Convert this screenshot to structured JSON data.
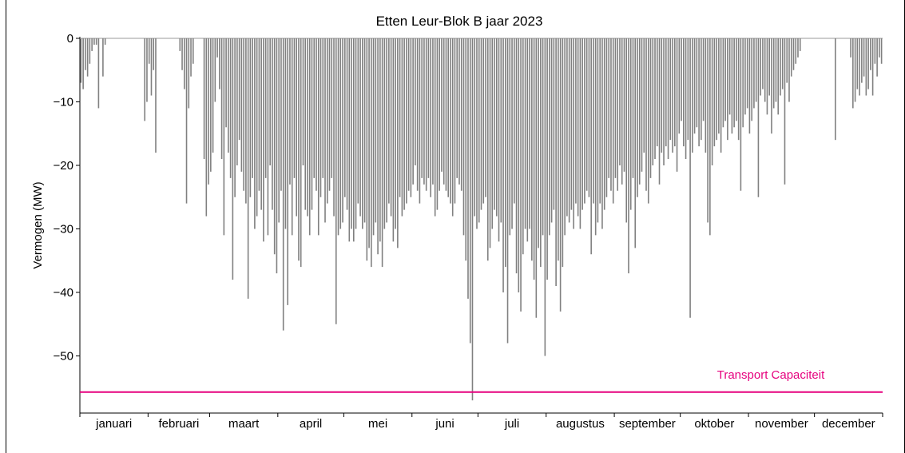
{
  "chart_data": {
    "type": "bar",
    "title": "Etten Leur-Blok B jaar 2023",
    "ylabel": "Vermogen (MW)",
    "xlabel": "",
    "ylim": [
      -59,
      0
    ],
    "yticks": [
      0,
      -10,
      -20,
      -30,
      -40,
      -50
    ],
    "ytick_labels": [
      "0",
      "−10",
      "−20",
      "−30",
      "−40",
      "−50"
    ],
    "months": [
      "januari",
      "februari",
      "maart",
      "april",
      "mei",
      "juni",
      "juli",
      "augustus",
      "september",
      "oktober",
      "november",
      "december"
    ],
    "bar_color": "#808080",
    "line_color": "#e6007e",
    "transport_capacity": {
      "label": "Transport Capaciteit",
      "value": -55.7
    },
    "series": [
      {
        "name": "",
        "resolution": "daily",
        "year": 2023,
        "min_values": [
          -7,
          -8,
          -5,
          -6,
          -4,
          -2,
          -1,
          -1,
          -11,
          0,
          -6,
          -1,
          0,
          0,
          0,
          0,
          0,
          0,
          0,
          0,
          0,
          0,
          0,
          0,
          0,
          0,
          0,
          0,
          0,
          -13,
          -10,
          -4,
          -9,
          -5,
          -18,
          0,
          0,
          0,
          0,
          0,
          0,
          0,
          0,
          0,
          0,
          -2,
          -5,
          -8,
          -26,
          -11,
          -6,
          -4,
          0,
          0,
          0,
          0,
          -19,
          -28,
          -23,
          -21,
          -18,
          -10,
          -3,
          -8,
          -19,
          -31,
          -14,
          -18,
          -22,
          -38,
          -25,
          -20,
          -16,
          -21,
          -24,
          -26,
          -41,
          -25,
          -22,
          -30,
          -28,
          -24,
          -27,
          -32,
          -22,
          -31,
          -20,
          -27,
          -34,
          -37,
          -29,
          -24,
          -46,
          -30,
          -42,
          -23,
          -31,
          -22,
          -28,
          -35,
          -36,
          -20,
          -27,
          -28,
          -31,
          -27,
          -22,
          -24,
          -31,
          -25,
          -22,
          -29,
          -26,
          -24,
          -22,
          -28,
          -45,
          -31,
          -30,
          -29,
          -25,
          -27,
          -32,
          -30,
          -32,
          -30,
          -26,
          -28,
          -30,
          -29,
          -35,
          -33,
          -36,
          -31,
          -29,
          -34,
          -32,
          -36,
          -30,
          -29,
          -26,
          -28,
          -32,
          -30,
          -33,
          -25,
          -28,
          -27,
          -26,
          -24,
          -25,
          -23,
          -20,
          -24,
          -26,
          -22,
          -23,
          -24,
          -22,
          -25,
          -23,
          -28,
          -27,
          -24,
          -21,
          -23,
          -24,
          -25,
          -26,
          -28,
          -26,
          -22,
          -23,
          -24,
          -31,
          -35,
          -41,
          -48,
          -57,
          -28,
          -30,
          -29,
          -27,
          -26,
          -25,
          -35,
          -33,
          -30,
          -27,
          -28,
          -32,
          -29,
          -40,
          -36,
          -48,
          -31,
          -30,
          -26,
          -37,
          -40,
          -43,
          -34,
          -30,
          -32,
          -30,
          -35,
          -38,
          -44,
          -33,
          -36,
          -31,
          -50,
          -38,
          -31,
          -29,
          -27,
          -39,
          -35,
          -43,
          -36,
          -31,
          -28,
          -29,
          -27,
          -30,
          -26,
          -28,
          -30,
          -27,
          -26,
          -24,
          -25,
          -34,
          -26,
          -31,
          -29,
          -26,
          -30,
          -27,
          -25,
          -22,
          -24,
          -26,
          -22,
          -24,
          -20,
          -23,
          -21,
          -29,
          -37,
          -27,
          -22,
          -33,
          -25,
          -23,
          -21,
          -18,
          -24,
          -26,
          -22,
          -20,
          -19,
          -17,
          -23,
          -18,
          -20,
          -17,
          -19,
          -16,
          -18,
          -17,
          -21,
          -15,
          -13,
          -17,
          -19,
          -16,
          -44,
          -18,
          -15,
          -14,
          -17,
          -16,
          -13,
          -18,
          -29,
          -31,
          -20,
          -17,
          -16,
          -15,
          -18,
          -14,
          -13,
          -16,
          -12,
          -15,
          -14,
          -13,
          -16,
          -24,
          -14,
          -12,
          -11,
          -15,
          -13,
          -11,
          -10,
          -25,
          -9,
          -8,
          -10,
          -12,
          -9,
          -15,
          -11,
          -10,
          -12,
          -9,
          -8,
          -23,
          -7,
          -10,
          -6,
          -5,
          -4,
          -3,
          -2,
          0,
          0,
          0,
          0,
          0,
          0,
          0,
          0,
          0,
          0,
          0,
          0,
          0,
          0,
          0,
          -16,
          0,
          0,
          0,
          0,
          0,
          0,
          -3,
          -11,
          -10,
          -8,
          -9,
          -7,
          -6,
          -9,
          -8,
          -5,
          -9,
          -4,
          -6,
          -3,
          -4,
          -2,
          -3,
          -1,
          -1
        ]
      }
    ]
  }
}
